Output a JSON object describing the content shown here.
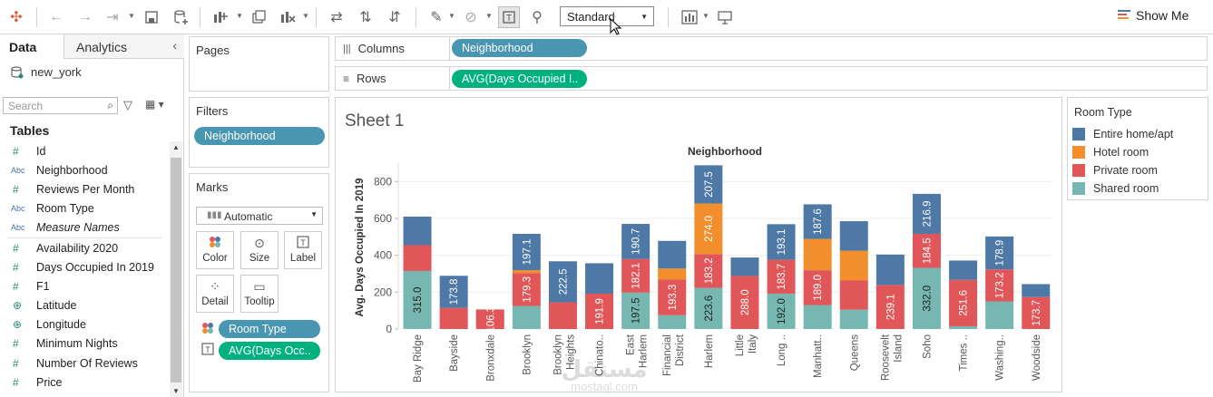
{
  "toolbar": {
    "format_select": "Standard",
    "show_me_label": "Show Me",
    "icons": [
      "tableau-logo-icon",
      "undo-icon",
      "redo-icon",
      "redo-history-icon",
      "save-icon",
      "new-datasource-icon",
      "new-worksheet-icon",
      "duplicate-icon",
      "clear-sheet-icon",
      "swap-rows-columns-icon",
      "sort-ascending-icon",
      "sort-descending-icon",
      "highlight-icon",
      "group-members-icon",
      "show-mark-labels-icon",
      "pin-icon",
      "fit-icon",
      "presentation-icon"
    ]
  },
  "data_pane": {
    "tab_data": "Data",
    "tab_analytics": "Analytics",
    "datasource": "new_york",
    "search_placeholder": "Search",
    "tables_header": "Tables",
    "fields": [
      {
        "type": "#",
        "name": "Id",
        "kind": "num"
      },
      {
        "type": "Abc",
        "name": "Neighborhood",
        "kind": "abc"
      },
      {
        "type": "#",
        "name": "Reviews Per Month",
        "kind": "num"
      },
      {
        "type": "Abc",
        "name": "Room Type",
        "kind": "abc"
      },
      {
        "type": "Abc",
        "name": "Measure Names",
        "kind": "abc"
      },
      {
        "type": "#",
        "name": "Availability 2020",
        "kind": "num"
      },
      {
        "type": "#",
        "name": "Days Occupied In 2019",
        "kind": "num"
      },
      {
        "type": "#",
        "name": "F1",
        "kind": "num"
      },
      {
        "type": "⊕",
        "name": "Latitude",
        "kind": "geo"
      },
      {
        "type": "⊕",
        "name": "Longitude",
        "kind": "geo"
      },
      {
        "type": "#",
        "name": "Minimum Nights",
        "kind": "num"
      },
      {
        "type": "#",
        "name": "Number Of Reviews",
        "kind": "num"
      },
      {
        "type": "#",
        "name": "Price",
        "kind": "num"
      }
    ]
  },
  "pages_card": {
    "title": "Pages"
  },
  "filters_card": {
    "title": "Filters",
    "pill": "Neighborhood"
  },
  "marks_card": {
    "title": "Marks",
    "mark_type": "Automatic",
    "buttons": [
      "Color",
      "Size",
      "Label",
      "Detail",
      "Tooltip"
    ],
    "pill_color": "Room Type",
    "pill_label": "AVG(Days Occ.."
  },
  "shelves": {
    "columns_label": "Columns",
    "columns_pill": "Neighborhood",
    "rows_label": "Rows",
    "rows_pill": "AVG(Days Occupied I.."
  },
  "sheet": {
    "title": "Sheet 1"
  },
  "legend": {
    "title": "Room Type",
    "items": [
      {
        "label": "Entire home/apt",
        "color": "#4e79a7"
      },
      {
        "label": "Hotel room",
        "color": "#f28e2b"
      },
      {
        "label": "Private room",
        "color": "#e15759"
      },
      {
        "label": "Shared room",
        "color": "#76b7b2"
      }
    ]
  },
  "watermark": {
    "text": "مستقل",
    "sub": "mostaql.com"
  },
  "chart_data": {
    "type": "bar",
    "stacked": true,
    "title": "Neighborhood",
    "xlabel": "",
    "ylabel": "Avg. Days Occupied In 2019",
    "ylim": [
      0,
      900
    ],
    "yticks": [
      0,
      200,
      400,
      600,
      800
    ],
    "grid": true,
    "categories": [
      "Bay Ridge",
      "Bayside",
      "Bronxdale",
      "Brooklyn",
      "Brooklyn Heights",
      "Chinato..",
      "East Harlem",
      "Financial District",
      "Harlem",
      "Little Italy",
      "Long ..",
      "Manhatt..",
      "Queens",
      "Roosevelt Island",
      "Soho",
      "Times ..",
      "Washing..",
      "Woodside"
    ],
    "series": [
      {
        "name": "Shared room",
        "color": "#76b7b2",
        "values": [
          315.0,
          null,
          null,
          125,
          null,
          null,
          197.5,
          75,
          223.6,
          null,
          192.0,
          130,
          105,
          null,
          332.0,
          15,
          150,
          null
        ],
        "labels": [
          "315.0",
          null,
          null,
          null,
          null,
          null,
          "197.5",
          null,
          "223.6",
          null,
          "192.0",
          null,
          null,
          null,
          "332.0",
          null,
          null,
          null
        ]
      },
      {
        "name": "Private room",
        "color": "#e15759",
        "values": [
          140,
          115,
          106.3,
          179.3,
          145,
          191.9,
          182.1,
          193.3,
          183.2,
          288.0,
          183.7,
          189.0,
          160,
          239.1,
          184.5,
          251.6,
          173.2,
          173.7
        ],
        "labels": [
          null,
          null,
          "106.3",
          "179.3",
          null,
          "191.9",
          "182.1",
          "193.3",
          "183.2",
          "288.0",
          "183.7",
          "189.0",
          null,
          "239.1",
          "184.5",
          "251.6",
          "173.2",
          "173.7"
        ]
      },
      {
        "name": "Hotel room",
        "color": "#f28e2b",
        "values": [
          null,
          null,
          null,
          15,
          null,
          null,
          null,
          60,
          274.0,
          null,
          null,
          170,
          160,
          null,
          null,
          null,
          null,
          null
        ],
        "labels": [
          null,
          null,
          null,
          null,
          null,
          null,
          null,
          null,
          "274.0",
          null,
          null,
          null,
          null,
          null,
          null,
          null,
          null,
          null
        ]
      },
      {
        "name": "Entire home/apt",
        "color": "#4e79a7",
        "values": [
          155,
          173.8,
          null,
          197.1,
          222.5,
          165,
          190.7,
          150,
          207.5,
          100,
          193.1,
          187.6,
          160,
          165,
          216.9,
          105,
          178.9,
          70
        ],
        "labels": [
          null,
          "173.8",
          null,
          "197.1",
          "222.5",
          null,
          "190.7",
          null,
          "207.5",
          null,
          "193.1",
          "187.6",
          null,
          null,
          "216.9",
          null,
          "178.9",
          null
        ]
      }
    ]
  }
}
